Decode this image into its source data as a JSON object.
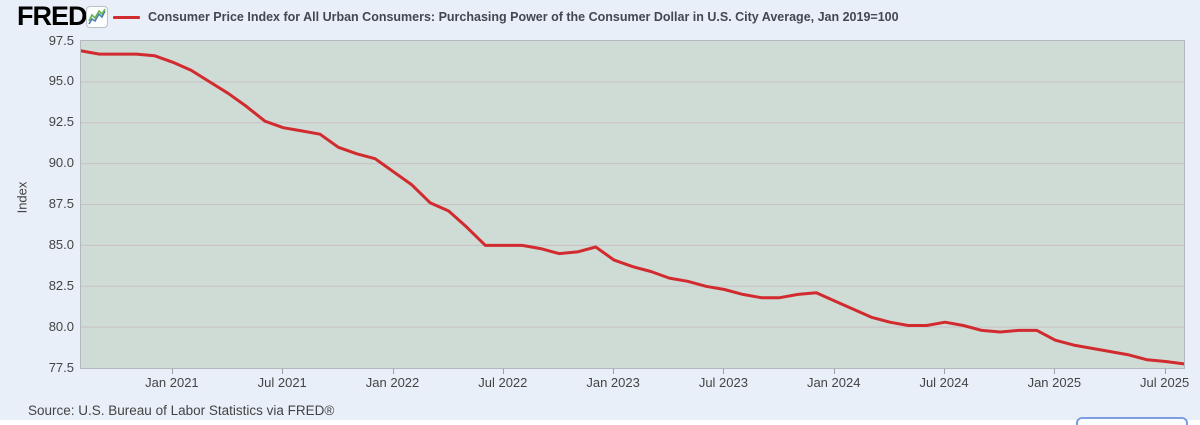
{
  "header": {
    "logo_text": "FRED",
    "logo_mark": "®",
    "logo_icon": "fred-sparkline-icon"
  },
  "legend": {
    "label": "Consumer Price Index for All Urban Consumers: Purchasing Power of the Consumer Dollar in U.S. City Average, Jan 2019=100",
    "line_color": "#d22b2f"
  },
  "footer": {
    "source_text": "Source: U.S. Bureau of Labor Statistics via FRED®"
  },
  "colors": {
    "page_background": "#e9eff8",
    "plot_background": "#cfdbd5",
    "gridline": "#c9c1c6",
    "plot_border": "#b4b8bc",
    "line": "#d22b2f",
    "text": "#444444"
  },
  "chart_data": {
    "type": "line",
    "title": "Consumer Price Index for All Urban Consumers: Purchasing Power of the Consumer Dollar in U.S. City Average, Jan 2019=100",
    "xlabel": "",
    "ylabel": "Index",
    "ylim": [
      77.5,
      97.5
    ],
    "grid": true,
    "legend_position": "top",
    "y_ticks": [
      97.5,
      95.0,
      92.5,
      90.0,
      87.5,
      85.0,
      82.5,
      80.0,
      77.5
    ],
    "x_tick_labels": [
      "Jan 2021",
      "Jul 2021",
      "Jan 2022",
      "Jul 2022",
      "Jan 2023",
      "Jul 2023",
      "Jan 2024",
      "Jul 2024",
      "Jan 2025",
      "Jul 2025"
    ],
    "x": [
      "Aug 2020",
      "Sep 2020",
      "Oct 2020",
      "Nov 2020",
      "Dec 2020",
      "Jan 2021",
      "Feb 2021",
      "Mar 2021",
      "Apr 2021",
      "May 2021",
      "Jun 2021",
      "Jul 2021",
      "Aug 2021",
      "Sep 2021",
      "Oct 2021",
      "Nov 2021",
      "Dec 2021",
      "Jan 2022",
      "Feb 2022",
      "Mar 2022",
      "Apr 2022",
      "May 2022",
      "Jun 2022",
      "Jul 2022",
      "Aug 2022",
      "Sep 2022",
      "Oct 2022",
      "Nov 2022",
      "Dec 2022",
      "Jan 2023",
      "Feb 2023",
      "Mar 2023",
      "Apr 2023",
      "May 2023",
      "Jun 2023",
      "Jul 2023",
      "Aug 2023",
      "Sep 2023",
      "Oct 2023",
      "Nov 2023",
      "Dec 2023",
      "Jan 2024",
      "Feb 2024",
      "Mar 2024",
      "Apr 2024",
      "May 2024",
      "Jun 2024",
      "Jul 2024",
      "Aug 2024",
      "Sep 2024",
      "Oct 2024",
      "Nov 2024",
      "Dec 2024",
      "Jan 2025",
      "Feb 2025",
      "Mar 2025",
      "Apr 2025",
      "May 2025",
      "Jun 2025",
      "Jul 2025",
      "Aug 2025"
    ],
    "series": [
      {
        "name": "Purchasing Power of the Consumer Dollar (Jan 2019=100)",
        "color": "#d22b2f",
        "values": [
          96.9,
          96.7,
          96.7,
          96.7,
          96.6,
          96.2,
          95.7,
          95.0,
          94.3,
          93.5,
          92.6,
          92.2,
          92.0,
          91.8,
          91.0,
          90.6,
          90.3,
          89.5,
          88.7,
          87.6,
          87.1,
          86.1,
          85.0,
          85.0,
          85.0,
          84.8,
          84.5,
          84.6,
          84.9,
          84.1,
          83.7,
          83.4,
          83.0,
          82.8,
          82.5,
          82.3,
          82.0,
          81.8,
          81.8,
          82.0,
          82.1,
          81.6,
          81.1,
          80.6,
          80.3,
          80.1,
          80.1,
          80.3,
          80.1,
          79.8,
          79.7,
          79.8,
          79.8,
          79.2,
          78.9,
          78.7,
          78.5,
          78.3,
          78.0,
          77.9,
          77.75
        ]
      }
    ]
  }
}
